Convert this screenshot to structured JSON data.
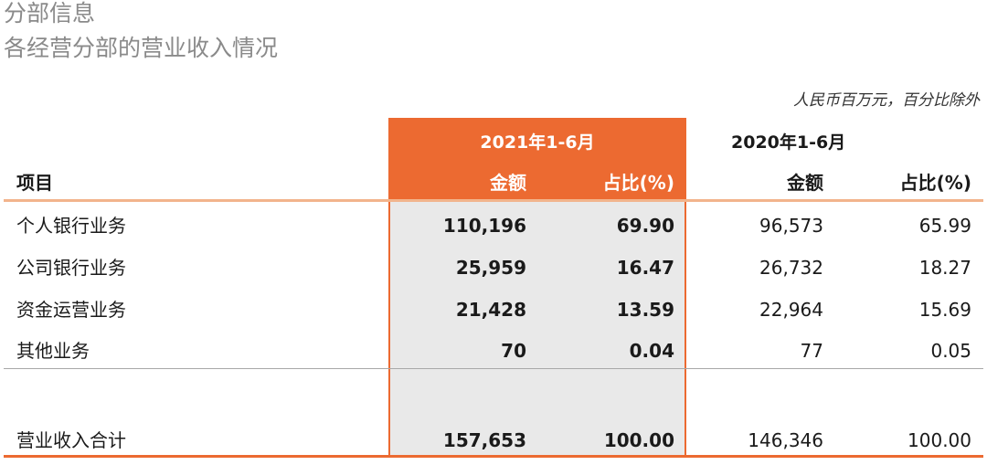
{
  "title": "分部信息",
  "subtitle": "各经营分部的营业收入情况",
  "unit_note": "人民币百万元，百分比除外",
  "colors": {
    "accent": "#ec6a31",
    "highlight_bg": "#e9e9e9",
    "title_gray": "#8a8a8a"
  },
  "table": {
    "period_2021": "2021年1-6月",
    "period_2020": "2020年1-6月",
    "item_header": "项目",
    "amount_header_2021": "金额",
    "pct_header_2021": "占比(%)",
    "amount_header_2020": "金额",
    "pct_header_2020": "占比(%)",
    "rows": [
      {
        "item": "个人银行业务",
        "amount_2021": "110,196",
        "pct_2021": "69.90",
        "amount_2020": "96,573",
        "pct_2020": "65.99"
      },
      {
        "item": "公司银行业务",
        "amount_2021": "25,959",
        "pct_2021": "16.47",
        "amount_2020": "26,732",
        "pct_2020": "18.27"
      },
      {
        "item": "资金运营业务",
        "amount_2021": "21,428",
        "pct_2021": "13.59",
        "amount_2020": "22,964",
        "pct_2020": "15.69"
      },
      {
        "item": "其他业务",
        "amount_2021": "70",
        "pct_2021": "0.04",
        "amount_2020": "77",
        "pct_2020": "0.05"
      }
    ],
    "total": {
      "item": "营业收入合计",
      "amount_2021": "157,653",
      "pct_2021": "100.00",
      "amount_2020": "146,346",
      "pct_2020": "100.00"
    }
  }
}
